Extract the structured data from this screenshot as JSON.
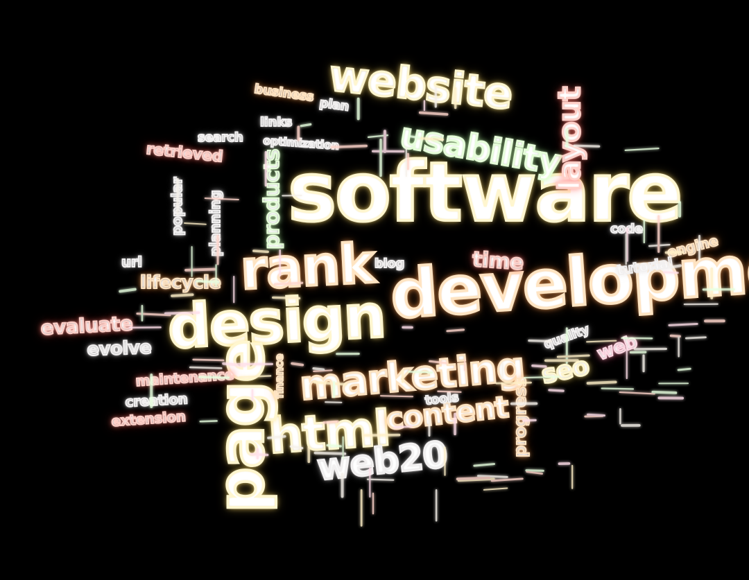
{
  "image": {
    "description_words": {
      "software": "software",
      "development": "development",
      "design": "design",
      "rank": "rank",
      "website": "website",
      "usability": "usability",
      "marketing": "marketing",
      "html": "html",
      "content": "content",
      "page": "page",
      "web20": "web20",
      "layout": "layout",
      "products": "products",
      "lifecycle": "lifecycle",
      "time": "time",
      "seo": "seo",
      "progress": "progress",
      "evaluate": "evaluate",
      "evolve": "evolve",
      "maintenance": "maintenance",
      "retrieved": "retrieved",
      "web": "web",
      "engine": "engine",
      "extension": "extension",
      "quality": "quality",
      "finance": "finance",
      "tutorial": "tutorial",
      "creation": "creation",
      "search": "search",
      "planning": "planning",
      "blog": "blog",
      "url": "url",
      "code": "code",
      "optimization": "optimization",
      "seo2": "seo",
      "plan": "plan",
      "tools": "tools",
      "business": "business",
      "links": "links",
      "popular": "popular"
    },
    "colors": {
      "background": "#000000",
      "glow_white": "#fff6d6",
      "red": "#ff7a6e",
      "orange": "#ffaa5a",
      "yellow": "#ffe678"
    }
  }
}
